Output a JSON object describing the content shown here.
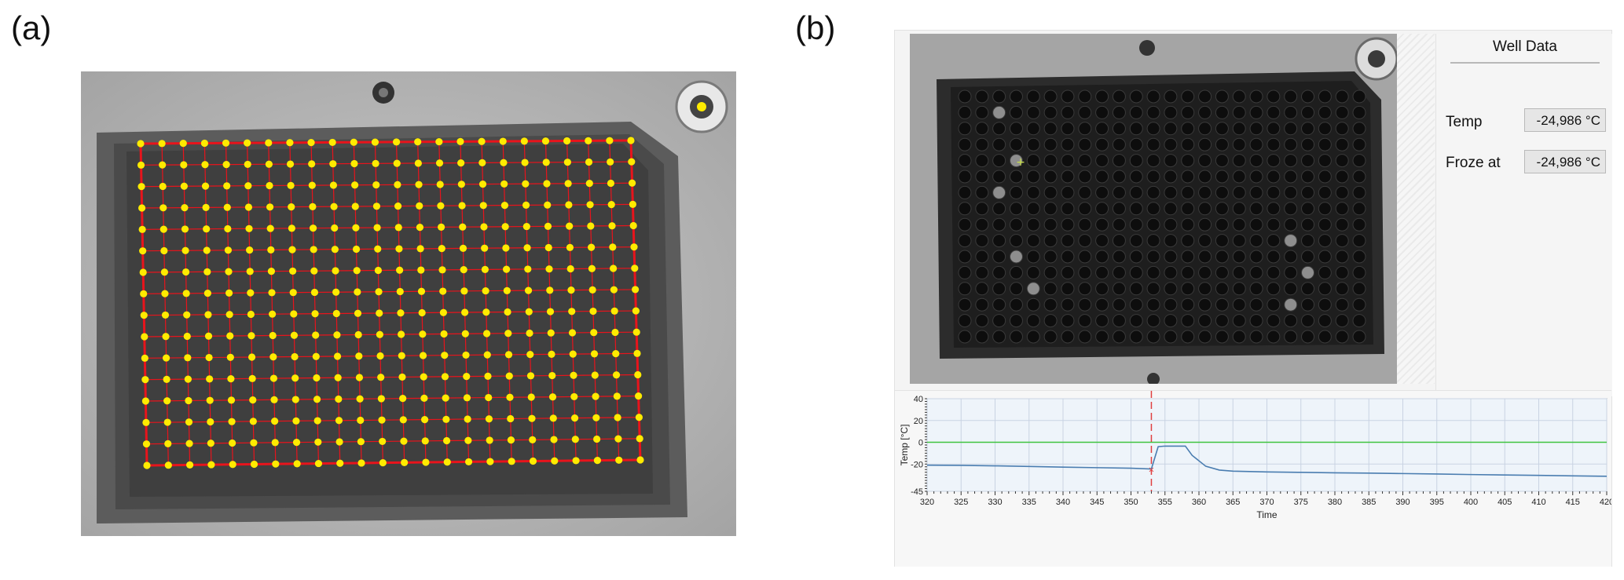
{
  "panel_labels": {
    "a": "(a)",
    "b": "(b)"
  },
  "plate_a": {
    "rows": 16,
    "cols": 24,
    "dot_color": "#ffeb00",
    "line_color": "#e8141c"
  },
  "plate_b": {
    "rows": 16,
    "cols": 24,
    "bright_wells": [
      [
        1,
        2
      ],
      [
        6,
        2
      ],
      [
        4,
        3
      ],
      [
        10,
        3
      ],
      [
        12,
        4
      ],
      [
        9,
        19
      ],
      [
        11,
        20
      ],
      [
        13,
        19
      ]
    ],
    "cursor": "+"
  },
  "well_data": {
    "title": "Well Data",
    "temp_label": "Temp",
    "temp_value": "-24,986 °C",
    "froze_label": "Froze at",
    "froze_value": "-24,986 °C"
  },
  "chart_data": {
    "type": "line",
    "xlabel": "Time",
    "ylabel": "Temp [°C]",
    "xlim": [
      320,
      420
    ],
    "ylim": [
      -45,
      40
    ],
    "x_ticks": [
      320,
      325,
      330,
      335,
      340,
      345,
      350,
      355,
      360,
      365,
      370,
      375,
      380,
      385,
      390,
      395,
      400,
      405,
      410,
      415,
      420
    ],
    "y_ticks": [
      40,
      20,
      0,
      -20,
      -45
    ],
    "grid": true,
    "reference_line": {
      "y": 0,
      "color": "#3fc43f"
    },
    "marker_line": {
      "x": 353,
      "color": "#e04040"
    },
    "series": [
      {
        "color": "#4a7db0",
        "x": [
          320,
          325,
          330,
          335,
          340,
          345,
          350,
          353,
          354,
          355,
          358,
          359,
          361,
          363,
          365,
          370,
          375,
          380,
          385,
          390,
          395,
          400,
          405,
          410,
          415,
          420
        ],
        "y": [
          -21,
          -21.2,
          -21.6,
          -22.2,
          -22.8,
          -23.3,
          -23.8,
          -24.5,
          -4,
          -3.5,
          -3.5,
          -12,
          -22,
          -25.5,
          -26.5,
          -27.2,
          -27.6,
          -28,
          -28.3,
          -28.7,
          -29.1,
          -29.6,
          -30,
          -30.4,
          -30.8,
          -31.2
        ]
      }
    ]
  }
}
